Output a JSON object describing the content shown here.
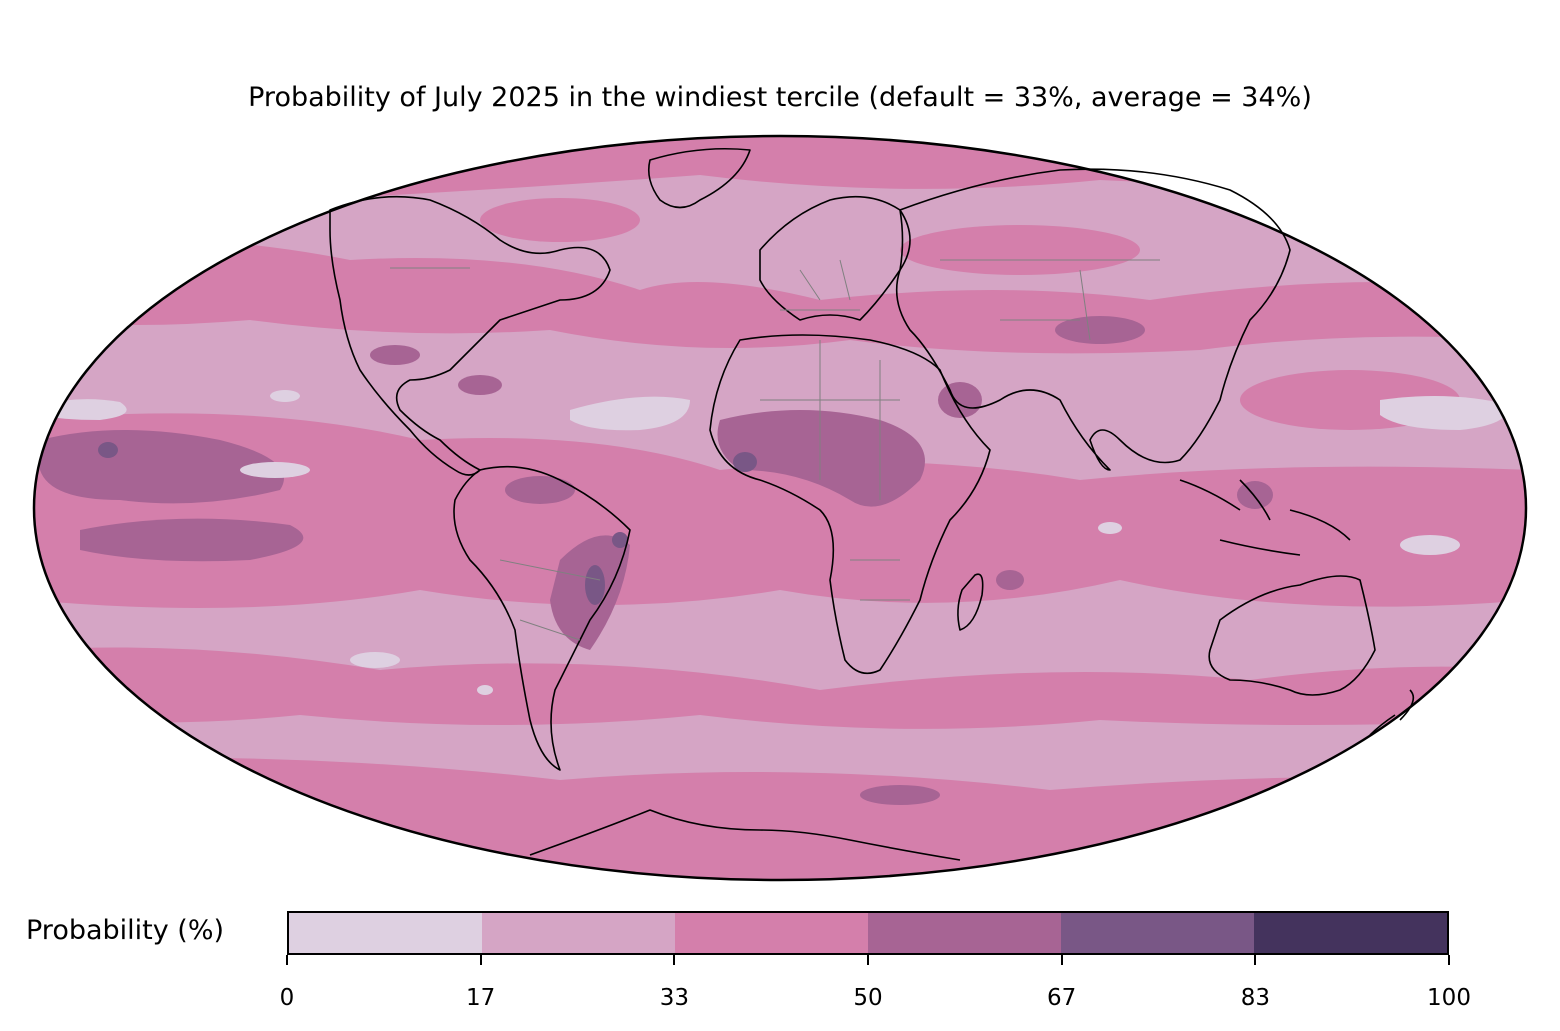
{
  "title": "Probability of July 2025 in the windiest tercile (default = 33%, average = 34%)",
  "colorbar": {
    "label": "Probability (%)",
    "bins": [
      {
        "from": 0,
        "to": 17,
        "color": "#ded0e1"
      },
      {
        "from": 17,
        "to": 33,
        "color": "#d5a5c5"
      },
      {
        "from": 33,
        "to": 50,
        "color": "#d47fab"
      },
      {
        "from": 50,
        "to": 67,
        "color": "#a76494"
      },
      {
        "from": 67,
        "to": 83,
        "color": "#795786"
      },
      {
        "from": 83,
        "to": 100,
        "color": "#44335d"
      }
    ],
    "ticks": [
      "0",
      "17",
      "33",
      "50",
      "67",
      "83",
      "100"
    ]
  },
  "map": {
    "projection": "Mollweide",
    "layers": [
      "coastlines",
      "country-borders",
      "probability-shading"
    ]
  }
}
